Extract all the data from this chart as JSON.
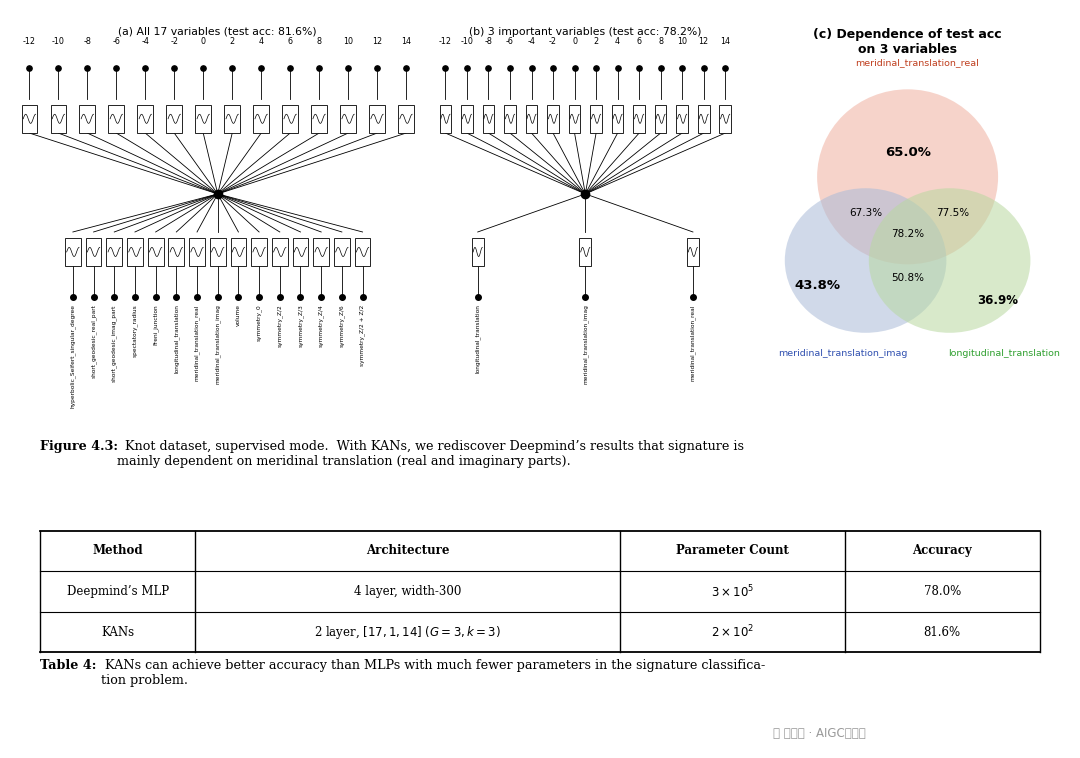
{
  "title_a": "(a) All 17 variables (test acc: 81.6%)",
  "title_b": "(b) 3 important variables (test acc: 78.2%)",
  "title_c": "(c) Dependence of test acc\non 3 variables",
  "venn_labels": [
    "meridinal_translation_real",
    "meridinal_translation_imag",
    "longitudinal_translation"
  ],
  "venn_colors_rgb": [
    "#f0b0a0",
    "#aabbd8",
    "#b8d8a0"
  ],
  "venn_label_colors": [
    "#c84020",
    "#4060b0",
    "#40a040"
  ],
  "venn_values": {
    "A_only": "65.0%",
    "B_only": "43.8%",
    "C_only": "36.9%",
    "AB": "67.3%",
    "AC": "77.5%",
    "BC": "50.8%",
    "ABC": "78.2%"
  },
  "ticks": [
    -12,
    -10,
    -8,
    -6,
    -4,
    -2,
    0,
    2,
    4,
    6,
    8,
    10,
    12,
    14
  ],
  "vars_a_bottom": [
    "hyperbolic_Seifert_singular_degree",
    "short_geodesic_real_part",
    "short_geodesic_imag_part",
    "spectatory_radius",
    "Freni_junction",
    "longitudinal_translation",
    "meridinal_translation_real",
    "meridinal_translation_imag",
    "volume",
    "symmetry_0",
    "symmetry_Z/2",
    "symmetry_Z/3",
    "symmetry_Z/4",
    "symmetry_Z/6",
    "symmetry_Z/2 + Z/2"
  ],
  "vars_b_bottom": [
    "longitudinal_translation",
    "meridinal_translation_imag",
    "meridinal_translation_real"
  ],
  "fig_caption_bold": "Figure 4.3:",
  "fig_caption_rest": "  Knot dataset, supervised mode.  With KANs, we rediscover Deepmind’s results that signature is\nmainly dependent on meridinal translation (real and imaginary parts).",
  "table_caption_bold": "Table 4:",
  "table_caption_rest": " KANs can achieve better accuracy than MLPs with much fewer parameters in the signature classifica-\ntion problem.",
  "table_headers": [
    "Method",
    "Architecture",
    "Parameter Count",
    "Accuracy"
  ],
  "table_row1_col0": "Deepmind’s MLP",
  "table_row1_col1": "4 layer, width-300",
  "table_row1_col2": "$3 \\times 10^5$",
  "table_row1_col3": "78.0%",
  "table_row2_col0": "KANs",
  "table_row2_col1": "2 layer, $[17, 1, 14]$ $(G = 3, k = 3)$",
  "table_row2_col2": "$2 \\times 10^2$",
  "table_row2_col3": "81.6%",
  "watermark": "公众号 · AIGC最前线"
}
